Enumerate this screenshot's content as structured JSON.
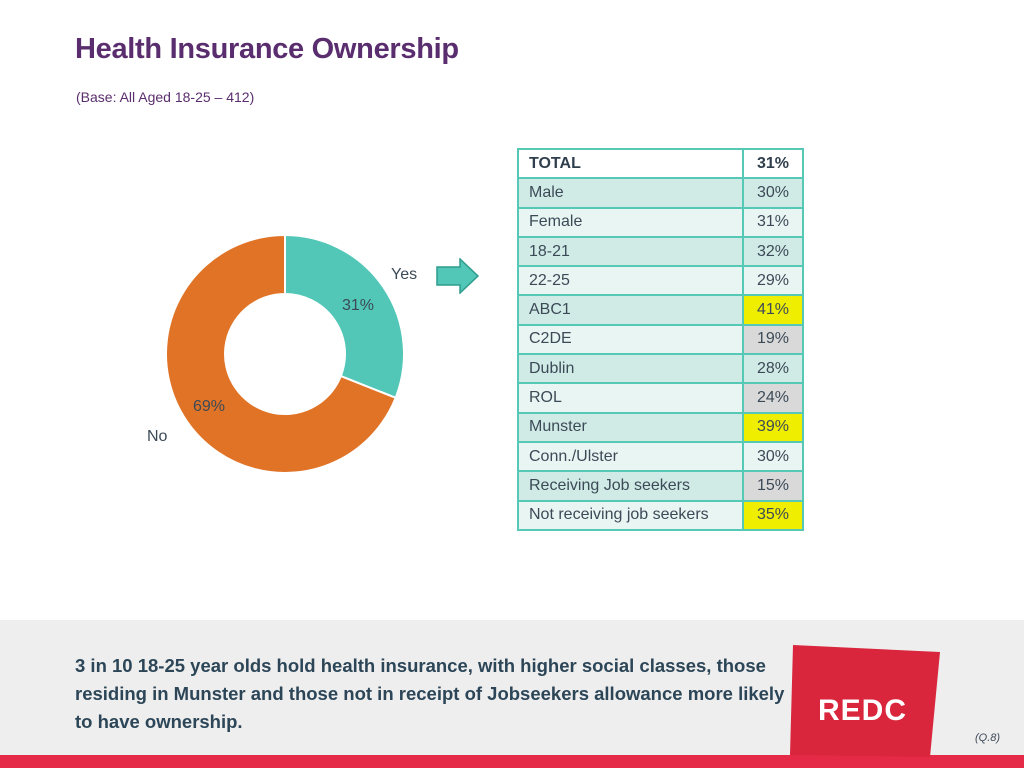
{
  "header": {
    "title": "Health Insurance Ownership",
    "subtitle": "(Base: All Aged 18-25 – 412)"
  },
  "chart_data": {
    "type": "pie",
    "variant": "donut",
    "title": "",
    "categories": [
      "Yes",
      "No"
    ],
    "values": [
      31,
      69
    ],
    "value_labels": [
      "31%",
      "69%"
    ],
    "colors": [
      "#52c7b8",
      "#e07326"
    ]
  },
  "table": {
    "rows": [
      {
        "label": "TOTAL",
        "value": "31%",
        "highlight": "none",
        "bold": true
      },
      {
        "label": "Male",
        "value": "30%",
        "highlight": "none"
      },
      {
        "label": "Female",
        "value": "31%",
        "highlight": "none"
      },
      {
        "label": "18-21",
        "value": "32%",
        "highlight": "none"
      },
      {
        "label": "22-25",
        "value": "29%",
        "highlight": "none"
      },
      {
        "label": "ABC1",
        "value": "41%",
        "highlight": "yellow"
      },
      {
        "label": "C2DE",
        "value": "19%",
        "highlight": "grey"
      },
      {
        "label": "Dublin",
        "value": "28%",
        "highlight": "none"
      },
      {
        "label": "ROL",
        "value": "24%",
        "highlight": "grey"
      },
      {
        "label": "Munster",
        "value": "39%",
        "highlight": "yellow"
      },
      {
        "label": "Conn./Ulster",
        "value": "30%",
        "highlight": "none"
      },
      {
        "label": "Receiving Job seekers",
        "value": "15%",
        "highlight": "grey"
      },
      {
        "label": "Not receiving job seekers",
        "value": "35%",
        "highlight": "yellow"
      }
    ]
  },
  "footer": {
    "summary": "3 in 10 18-25 year olds hold health insurance, with higher social classes, those residing in Munster and those not in receipt of Jobseekers allowance more likely to have ownership.",
    "logo_text": "REDC",
    "question_ref": "(Q.8)"
  },
  "colors": {
    "title": "#5a2d6e",
    "teal": "#52c7b8",
    "orange": "#e07326",
    "logo_red": "#d9263c",
    "highlight_yellow": "#f0ee00",
    "highlight_grey": "#d9d9d9"
  }
}
